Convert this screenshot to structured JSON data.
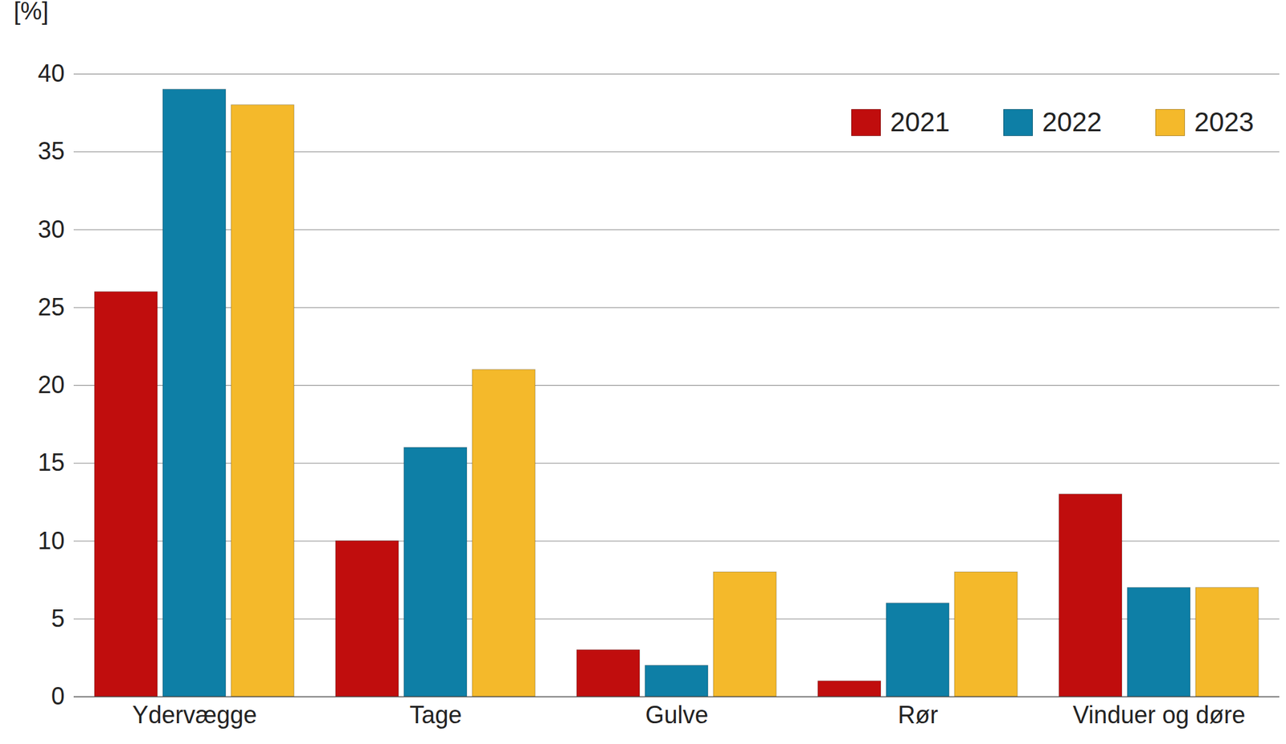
{
  "chart_data": {
    "type": "bar",
    "y_label": "[%]",
    "categories": [
      "Ydervægge",
      "Tage",
      "Gulve",
      "Rør",
      "Vinduer og døre"
    ],
    "series": [
      {
        "name": "2021",
        "color": "#c00d0d",
        "values": [
          26,
          10,
          3,
          1,
          13
        ]
      },
      {
        "name": "2022",
        "color": "#0e7fa6",
        "values": [
          39,
          16,
          2,
          6,
          7
        ]
      },
      {
        "name": "2023",
        "color": "#f4b92b",
        "values": [
          38,
          21,
          8,
          8,
          7
        ]
      }
    ],
    "ylim": [
      0,
      40
    ],
    "yticks": [
      0,
      5,
      10,
      15,
      20,
      25,
      30,
      35,
      40
    ],
    "grid": true,
    "legend": "upper right"
  }
}
